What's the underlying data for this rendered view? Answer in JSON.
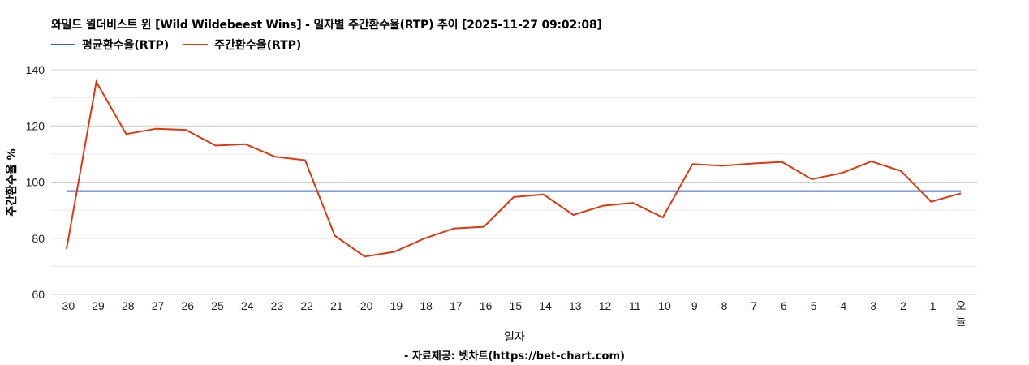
{
  "title": "와일드 윌더비스트 윈 [Wild Wildebeest Wins] - 일자별 주간환수율(RTP) 추이 [2025-11-27 09:02:08]",
  "legend": [
    {
      "label": "평균환수율(RTP)",
      "color": "#3366cc"
    },
    {
      "label": "주간환수율(RTP)",
      "color": "#dc3912"
    }
  ],
  "x_axis_title": "일자",
  "y_axis_title": "주간환수율 %",
  "source": "- 자료제공: 벳차트(https://bet-chart.com)",
  "chart_data": {
    "type": "line",
    "title": "와일드 윌더비스트 윈 [Wild Wildebeest Wins] - 일자별 주간환수율(RTP) 추이 [2025-11-27 09:02:08]",
    "xlabel": "일자",
    "ylabel": "주간환수율 %",
    "ylim": [
      60,
      140
    ],
    "yticks": [
      60,
      80,
      100,
      120,
      140
    ],
    "grid": true,
    "legend_position": "top",
    "categories": [
      "-30",
      "-29",
      "-28",
      "-27",
      "-26",
      "-25",
      "-24",
      "-23",
      "-22",
      "-21",
      "-20",
      "-19",
      "-18",
      "-17",
      "-16",
      "-15",
      "-14",
      "-13",
      "-12",
      "-11",
      "-10",
      "-9",
      "-8",
      "-7",
      "-6",
      "-5",
      "-4",
      "-3",
      "-2",
      "-1",
      "오늘"
    ],
    "series": [
      {
        "name": "평균환수율(RTP)",
        "color": "#3366cc",
        "values": [
          96.8,
          96.8,
          96.8,
          96.8,
          96.8,
          96.8,
          96.8,
          96.8,
          96.8,
          96.8,
          96.8,
          96.8,
          96.8,
          96.8,
          96.8,
          96.8,
          96.8,
          96.8,
          96.8,
          96.8,
          96.8,
          96.8,
          96.8,
          96.8,
          96.8,
          96.8,
          96.8,
          96.8,
          96.8,
          96.8,
          96.8
        ]
      },
      {
        "name": "주간환수율(RTP)",
        "color": "#dc3912",
        "values": [
          76.2,
          135.7,
          117.1,
          119.0,
          118.6,
          113.0,
          113.5,
          109.0,
          107.8,
          80.9,
          73.5,
          75.2,
          79.9,
          83.5,
          84.1,
          94.7,
          95.6,
          88.3,
          91.6,
          92.6,
          87.4,
          106.4,
          105.8,
          106.6,
          107.2,
          101.0,
          103.2,
          107.4,
          103.9,
          93.0,
          96.0
        ]
      }
    ]
  }
}
